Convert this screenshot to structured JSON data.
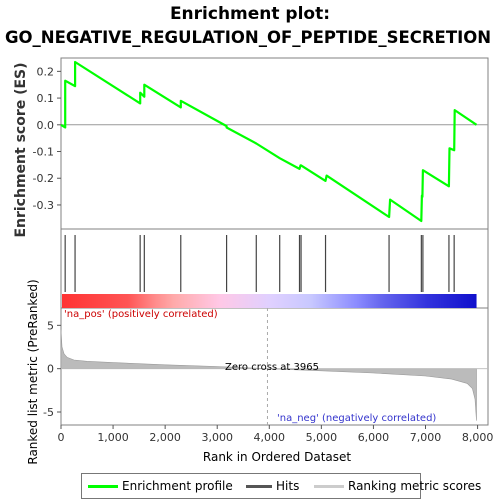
{
  "title_line1": "Enrichment plot:",
  "title_line2": "GO_NEGATIVE_REGULATION_OF_PEPTIDE_SECRETION",
  "legend": {
    "items": [
      {
        "label": "Enrichment profile",
        "color": "#00ff00"
      },
      {
        "label": "Hits",
        "color": "#555555"
      },
      {
        "label": "Ranking metric scores",
        "color": "#cccccc"
      }
    ]
  },
  "chart_data": [
    {
      "type": "line",
      "panel": "enrichment",
      "ylabel": "Enrichment score (ES)",
      "ylim": [
        -0.39,
        0.25
      ],
      "yticks": [
        0.2,
        0.1,
        0.0,
        -0.1,
        -0.2,
        -0.3
      ],
      "ytick_labels": [
        "0.2",
        "0.1",
        "0.0",
        "-0.1",
        "-0.2",
        "-0.3"
      ],
      "xlim": [
        0,
        8200
      ],
      "color": "#00ff00",
      "grid": false,
      "series": [
        {
          "x": [
            0,
            80,
            80,
            270,
            270,
            1520,
            1520,
            1600,
            1600,
            2300,
            2300,
            3180,
            3180,
            3750,
            4200,
            4580,
            4600,
            4610,
            5080,
            5100,
            6300,
            6320,
            6920,
            6930,
            6940,
            6950,
            7450,
            7460,
            7550,
            7560,
            7980
          ],
          "y": [
            0.0,
            -0.01,
            0.165,
            0.145,
            0.235,
            0.08,
            0.12,
            0.105,
            0.15,
            0.065,
            0.09,
            -0.005,
            -0.01,
            -0.07,
            -0.125,
            -0.165,
            -0.152,
            -0.152,
            -0.21,
            -0.19,
            -0.345,
            -0.28,
            -0.36,
            -0.265,
            -0.27,
            -0.17,
            -0.23,
            -0.088,
            -0.095,
            0.055,
            0.0
          ]
        }
      ]
    },
    {
      "type": "hits",
      "panel": "hits",
      "hit_ranks": [
        80,
        270,
        1520,
        1600,
        2300,
        3180,
        3750,
        4200,
        4580,
        4610,
        5080,
        6300,
        6920,
        6950,
        7450,
        7550
      ]
    },
    {
      "type": "heatmap",
      "panel": "rank-color-bar",
      "stops": [
        "#ff3333",
        "#ff5555",
        "#ff8888",
        "#ffaaaa",
        "#ffc8e6",
        "#e0d0ff",
        "#c8c8ff",
        "#8c8cff",
        "#6666ee",
        "#3333dd",
        "#1010cc"
      ],
      "annotation_pos": "'na_pos' (positively correlated)",
      "annotation_neg": "'na_neg' (negatively correlated)"
    },
    {
      "type": "area",
      "panel": "ranked-metric",
      "xlabel": "Rank in Ordered Dataset",
      "ylabel": "Ranked list metric (PreRanked)",
      "ylim": [
        -6.5,
        7
      ],
      "yticks": [
        5,
        0,
        -5
      ],
      "ytick_labels": [
        "5",
        "0",
        "-5"
      ],
      "xticks": [
        0,
        1000,
        2000,
        3000,
        4000,
        5000,
        6000,
        7000,
        8000
      ],
      "xtick_labels": [
        "0",
        "1,000",
        "2,000",
        "3,000",
        "4,000",
        "5,000",
        "6,000",
        "7,000",
        "8,000"
      ],
      "x": [
        0,
        20,
        60,
        120,
        250,
        500,
        1000,
        2000,
        3000,
        3965,
        5000,
        6000,
        7000,
        7500,
        7800,
        7900,
        7950,
        7980
      ],
      "values": [
        4.5,
        2.5,
        1.7,
        1.3,
        1.0,
        0.85,
        0.7,
        0.45,
        0.25,
        0.0,
        -0.25,
        -0.5,
        -0.85,
        -1.2,
        -1.7,
        -2.3,
        -3.5,
        -6.0
      ],
      "fill": "#bbbbbb",
      "zero_cross_label": "Zero cross at 3965",
      "zero_cross": 3965
    }
  ]
}
